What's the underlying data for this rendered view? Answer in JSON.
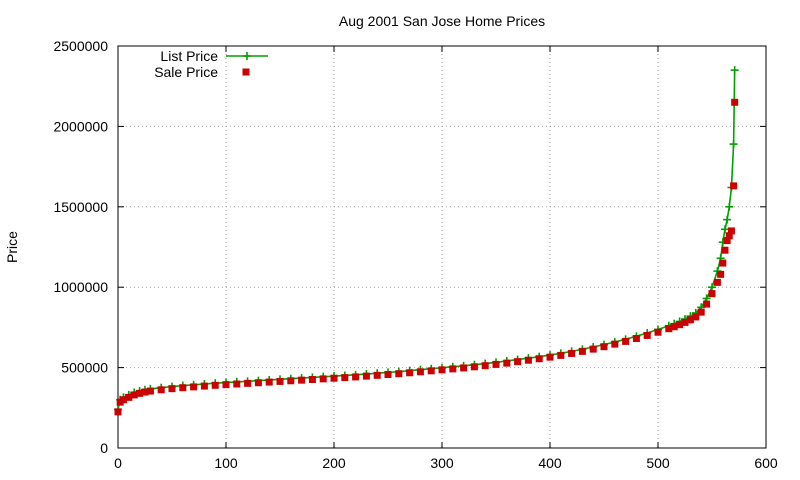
{
  "chart_data": {
    "type": "line",
    "title": "Aug 2001 San Jose Home Prices",
    "xlabel": "",
    "ylabel": "Price",
    "xlim": [
      0,
      600
    ],
    "ylim": [
      0,
      2500000
    ],
    "x_ticks": [
      "0",
      "100",
      "200",
      "300",
      "400",
      "500",
      "600"
    ],
    "y_ticks": [
      "0",
      "500000",
      "1000000",
      "1500000",
      "2000000",
      "2500000"
    ],
    "grid": true,
    "legend_position": "top-left",
    "series": [
      {
        "name": "List Price",
        "marker": "plus",
        "line": true,
        "color": "#00a000",
        "x": [
          0,
          2,
          5,
          10,
          15,
          20,
          25,
          30,
          40,
          50,
          60,
          70,
          80,
          90,
          100,
          110,
          120,
          130,
          140,
          150,
          160,
          170,
          180,
          190,
          200,
          210,
          220,
          230,
          240,
          250,
          260,
          270,
          280,
          290,
          300,
          310,
          320,
          330,
          340,
          350,
          360,
          370,
          380,
          390,
          400,
          410,
          420,
          430,
          440,
          450,
          460,
          470,
          480,
          490,
          500,
          510,
          515,
          520,
          525,
          530,
          535,
          540,
          545,
          550,
          555,
          558,
          560,
          562,
          564,
          566,
          568,
          570,
          571
        ],
        "y": [
          240000,
          300000,
          315000,
          330000,
          345000,
          355000,
          362000,
          368000,
          375000,
          382000,
          388000,
          393000,
          398000,
          403000,
          407000,
          411000,
          415000,
          419000,
          423000,
          427000,
          431000,
          435000,
          439000,
          443000,
          447000,
          451000,
          455000,
          460000,
          465000,
          470000,
          475000,
          481000,
          487000,
          493000,
          499000,
          505000,
          511000,
          518000,
          525000,
          533000,
          541000,
          550000,
          559000,
          568000,
          578000,
          589000,
          601000,
          614000,
          628000,
          643000,
          659000,
          676000,
          695000,
          715000,
          737000,
          760000,
          773000,
          787000,
          802000,
          820000,
          840000,
          875000,
          930000,
          1000000,
          1100000,
          1180000,
          1280000,
          1360000,
          1420000,
          1500000,
          1620000,
          1890000,
          2350000
        ]
      },
      {
        "name": "Sale Price",
        "marker": "square",
        "line": false,
        "color": "#cc0000",
        "x": [
          0,
          2,
          5,
          10,
          15,
          20,
          25,
          30,
          40,
          50,
          60,
          70,
          80,
          90,
          100,
          110,
          120,
          130,
          140,
          150,
          160,
          170,
          180,
          190,
          200,
          210,
          220,
          230,
          240,
          250,
          260,
          270,
          280,
          290,
          300,
          310,
          320,
          330,
          340,
          350,
          360,
          370,
          380,
          390,
          400,
          410,
          420,
          430,
          440,
          450,
          460,
          470,
          480,
          490,
          500,
          510,
          515,
          520,
          525,
          530,
          535,
          540,
          545,
          550,
          555,
          558,
          560,
          562,
          564,
          566,
          568,
          570,
          571
        ],
        "y": [
          225000,
          285000,
          300000,
          315000,
          330000,
          340000,
          348000,
          354000,
          362000,
          369000,
          375000,
          380000,
          385000,
          390000,
          394000,
          398000,
          402000,
          406000,
          410000,
          414000,
          418000,
          422000,
          426000,
          430000,
          434000,
          438000,
          442000,
          447000,
          452000,
          457000,
          462000,
          468000,
          474000,
          480000,
          486000,
          492000,
          498000,
          505000,
          512000,
          520000,
          528000,
          537000,
          546000,
          555000,
          565000,
          576000,
          588000,
          601000,
          615000,
          630000,
          646000,
          663000,
          681000,
          700000,
          720000,
          742000,
          754000,
          767000,
          781000,
          797000,
          815000,
          845000,
          895000,
          960000,
          1030000,
          1080000,
          1150000,
          1230000,
          1290000,
          1320000,
          1350000,
          1630000,
          2150000
        ]
      }
    ]
  }
}
